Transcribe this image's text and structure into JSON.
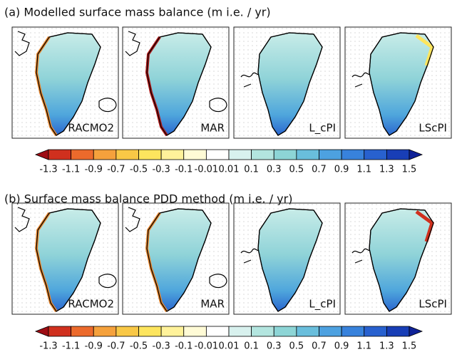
{
  "colormap": [
    "#9e0d14",
    "#d0301e",
    "#ec6a2c",
    "#f5a13c",
    "#f9c846",
    "#fde55e",
    "#fff29a",
    "#fffbd6",
    "#ffffff",
    "#d8f1ee",
    "#b3e5df",
    "#8dd5d6",
    "#69bedc",
    "#4da1e0",
    "#3882dc",
    "#2861cf",
    "#183eb6",
    "#0f2298"
  ],
  "panels": [
    {
      "title": "(a) Modelled surface mass balance (m i.e. / yr)",
      "maps": [
        {
          "label": "RACMO2"
        },
        {
          "label": "MAR"
        },
        {
          "label": "L_cPI"
        },
        {
          "label": "LScPI"
        }
      ],
      "colorbar": {
        "labels": [
          "-1.3",
          "-1.1",
          "-0.9",
          "-0.7",
          "-0.5",
          "-0.3",
          "-0.1",
          "-0.01",
          "0.01",
          "0.1",
          "0.3",
          "0.5",
          "0.7",
          "0.9",
          "1.1",
          "1.3",
          "1.5"
        ]
      }
    },
    {
      "title": "(b) Surface mass balance PDD method (m i.e. / yr)",
      "maps": [
        {
          "label": "RACMO2"
        },
        {
          "label": "MAR"
        },
        {
          "label": "L_cPI"
        },
        {
          "label": "LScPI"
        }
      ],
      "colorbar": {
        "labels": [
          "-1.3",
          "-1.1",
          "-0.9",
          "-0.7",
          "-0.5",
          "-0.3",
          "-0.1",
          "-0.01",
          "0.01",
          "0.1",
          "0.3",
          "0.5",
          "0.7",
          "0.9",
          "1.1",
          "1.3",
          "1.5"
        ]
      }
    }
  ]
}
